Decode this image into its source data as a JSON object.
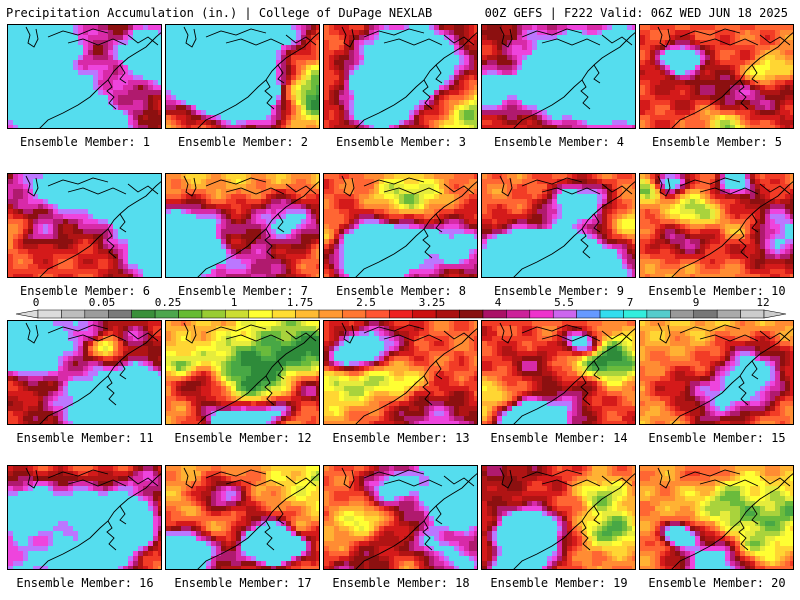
{
  "header": {
    "title": "Precipitation Accumulation (in.) | College of DuPage NEXLAB",
    "run_info": "00Z GEFS | F222 Valid: 06Z WED JUN 18 2025"
  },
  "colorbar": {
    "tick_labels": [
      "0",
      "0.05",
      "0.25",
      "1",
      "1.75",
      "2.5",
      "3.25",
      "4",
      "5.5",
      "7",
      "9",
      "12"
    ],
    "colors": [
      "#dcdcdc",
      "#bdbdbd",
      "#9c9c9c",
      "#7a7a7a",
      "#3a8f3a",
      "#4da64d",
      "#66bb33",
      "#99cc33",
      "#ccdd33",
      "#ffff33",
      "#ffdd33",
      "#ffbb33",
      "#ff9933",
      "#ff7733",
      "#ff5533",
      "#ee2222",
      "#cc1111",
      "#aa1111",
      "#881111",
      "#aa1166",
      "#cc2299",
      "#ee33cc",
      "#cc66ee",
      "#6699ff",
      "#33ddee",
      "#33eedd",
      "#55cccc",
      "#999999",
      "#777777",
      "#aaaaaa",
      "#cccccc"
    ]
  },
  "panels": [
    {
      "label": "Ensemble Member: 1"
    },
    {
      "label": "Ensemble Member: 2"
    },
    {
      "label": "Ensemble Member: 3"
    },
    {
      "label": "Ensemble Member: 4"
    },
    {
      "label": "Ensemble Member: 5"
    },
    {
      "label": "Ensemble Member: 6"
    },
    {
      "label": "Ensemble Member: 7"
    },
    {
      "label": "Ensemble Member: 8"
    },
    {
      "label": "Ensemble Member: 9"
    },
    {
      "label": "Ensemble Member: 10"
    },
    {
      "label": "Ensemble Member: 11"
    },
    {
      "label": "Ensemble Member: 12"
    },
    {
      "label": "Ensemble Member: 13"
    },
    {
      "label": "Ensemble Member: 14"
    },
    {
      "label": "Ensemble Member: 15"
    },
    {
      "label": "Ensemble Member: 16"
    },
    {
      "label": "Ensemble Member: 17"
    },
    {
      "label": "Ensemble Member: 18"
    },
    {
      "label": "Ensemble Member: 19"
    },
    {
      "label": "Ensemble Member: 20"
    }
  ]
}
